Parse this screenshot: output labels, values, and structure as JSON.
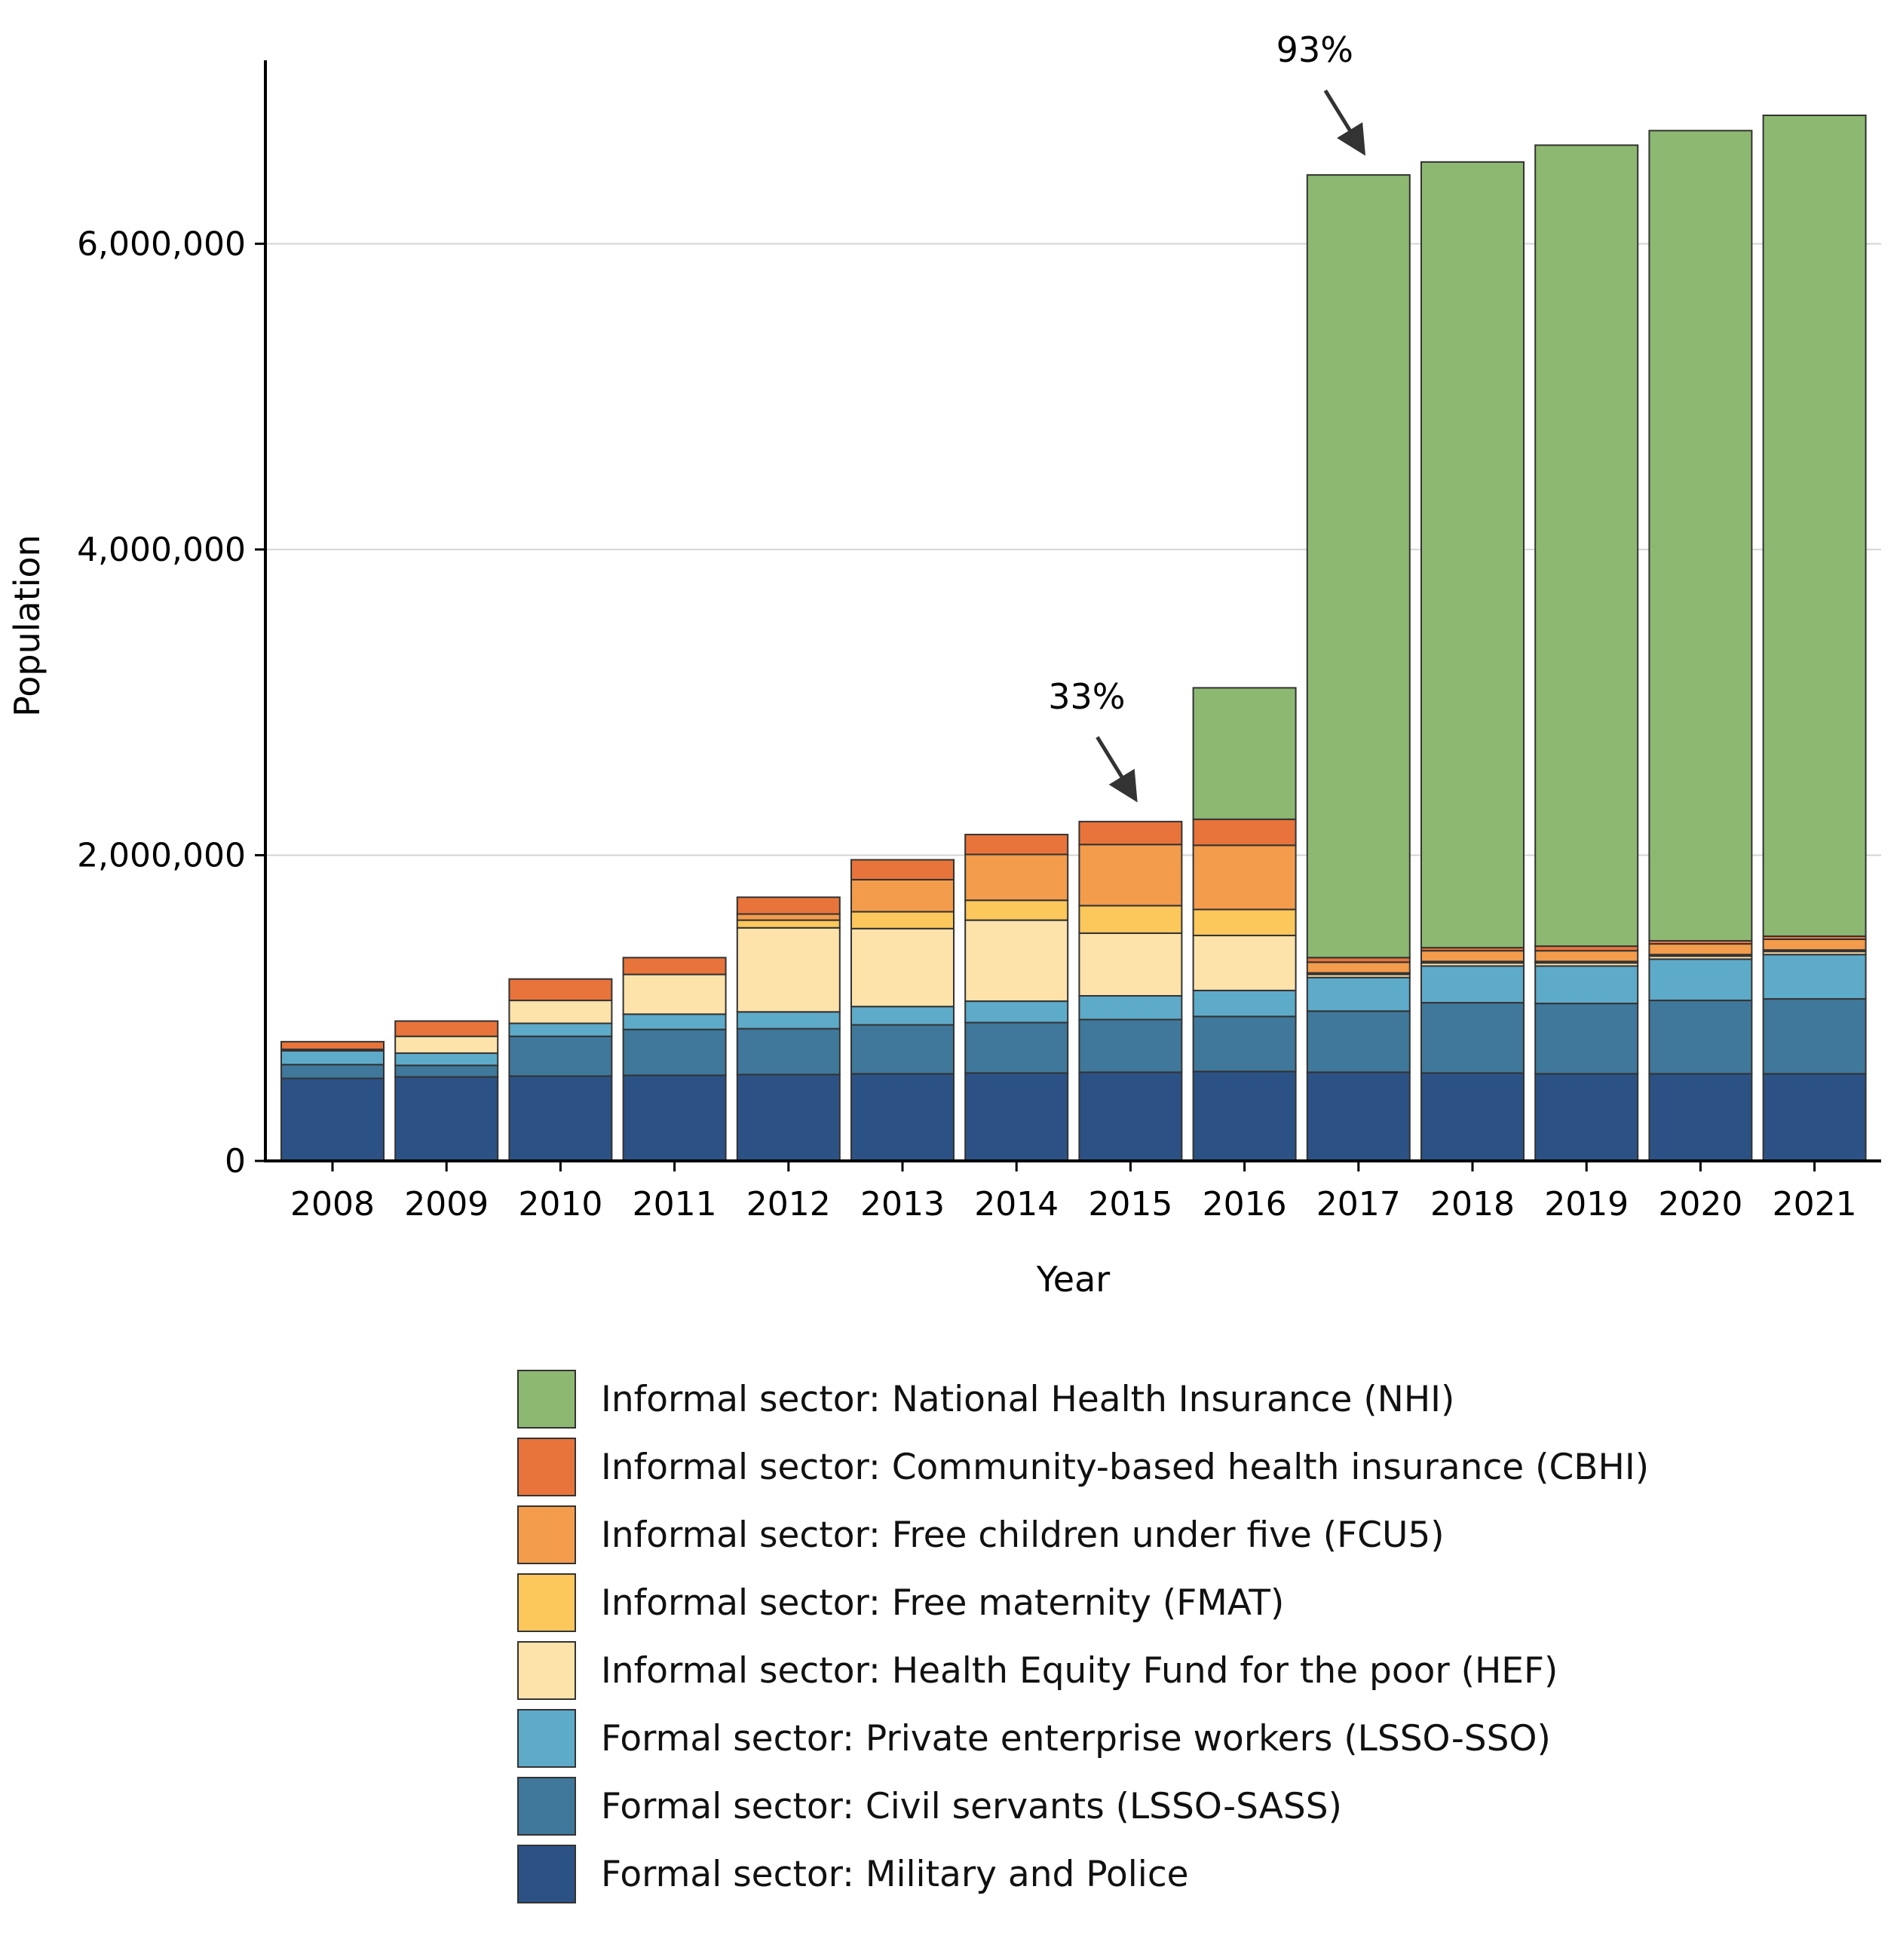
{
  "chart_data": {
    "type": "bar",
    "stacked": true,
    "xlabel": "Year",
    "ylabel": "Population",
    "ylim": [
      0,
      7200000
    ],
    "yticks": [
      0,
      2000000,
      4000000,
      6000000
    ],
    "ytick_labels": [
      "0",
      "2,000,000",
      "4,000,000",
      "6,000,000"
    ],
    "grid": "horizontal",
    "categories": [
      "2008",
      "2009",
      "2010",
      "2011",
      "2012",
      "2013",
      "2014",
      "2015",
      "2016",
      "2017",
      "2018",
      "2019",
      "2020",
      "2021"
    ],
    "series": [
      {
        "name": "Formal sector: Military and Police",
        "color": "#2c5285",
        "values": [
          540000,
          550000,
          555000,
          560000,
          565000,
          570000,
          575000,
          580000,
          585000,
          580000,
          575000,
          570000,
          570000,
          570000
        ]
      },
      {
        "name": "Formal sector: Civil servants (LSSO-SASS)",
        "color": "#3f789b",
        "values": [
          90000,
          75000,
          260000,
          300000,
          300000,
          320000,
          330000,
          345000,
          360000,
          400000,
          460000,
          460000,
          480000,
          490000
        ]
      },
      {
        "name": "Formal sector: Private enterprise workers (LSSO-SSO)",
        "color": "#5eaac9",
        "values": [
          90000,
          80000,
          85000,
          100000,
          110000,
          120000,
          140000,
          155000,
          170000,
          220000,
          240000,
          245000,
          270000,
          290000
        ]
      },
      {
        "name": "Informal sector: Health Equity Fund for the poor (HEF)",
        "color": "#fde2a9",
        "values": [
          10000,
          110000,
          150000,
          260000,
          550000,
          510000,
          530000,
          410000,
          360000,
          20000,
          20000,
          20000,
          20000,
          20000
        ]
      },
      {
        "name": "Informal sector: Free maternity (FMAT)",
        "color": "#fcc75b",
        "values": [
          0,
          0,
          0,
          0,
          50000,
          110000,
          130000,
          180000,
          170000,
          10000,
          10000,
          10000,
          10000,
          10000
        ]
      },
      {
        "name": "Informal sector: Free children under five (FCU5)",
        "color": "#f39c4b",
        "values": [
          0,
          0,
          0,
          0,
          40000,
          210000,
          300000,
          400000,
          420000,
          70000,
          70000,
          70000,
          70000,
          70000
        ]
      },
      {
        "name": "Informal sector: Community-based health insurance (CBHI)",
        "color": "#e8743b",
        "values": [
          50000,
          100000,
          140000,
          110000,
          110000,
          130000,
          130000,
          150000,
          170000,
          30000,
          20000,
          30000,
          20000,
          20000
        ]
      },
      {
        "name": "Informal sector: National Health Insurance (NHI)",
        "color": "#8db871",
        "values": [
          0,
          0,
          0,
          0,
          0,
          0,
          0,
          0,
          860000,
          5120000,
          5140000,
          5240000,
          5300000,
          5370000
        ]
      }
    ],
    "legend_order": [
      "Informal sector: National Health Insurance (NHI)",
      "Informal sector: Community-based health insurance (CBHI)",
      "Informal sector: Free children under five (FCU5)",
      "Informal sector: Free maternity (FMAT)",
      "Informal sector: Health Equity Fund for the poor (HEF)",
      "Formal sector: Private enterprise workers (LSSO-SSO)",
      "Formal sector: Civil servants (LSSO-SASS)",
      "Formal sector: Military and Police"
    ],
    "legend_position": "bottom",
    "annotations": [
      {
        "text": "33%",
        "category": "2015"
      },
      {
        "text": "93%",
        "category": "2017"
      }
    ]
  }
}
